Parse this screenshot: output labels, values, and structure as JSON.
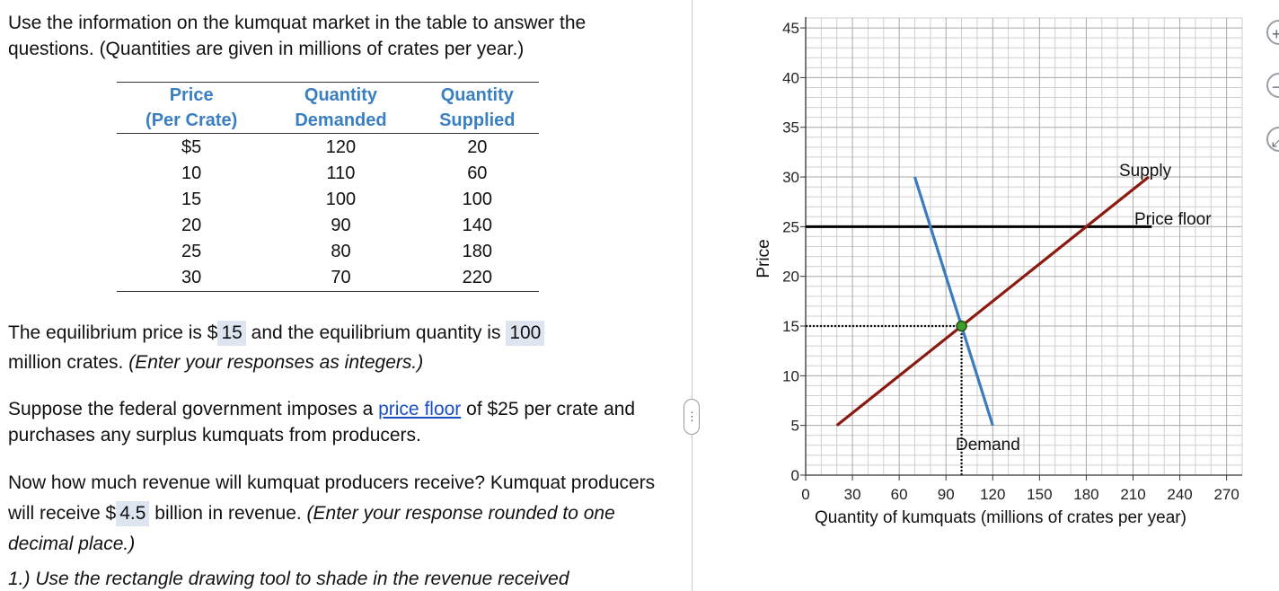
{
  "intro": "Use the information on the kumquat market in the table to answer the questions. (Quantities are given in millions of crates per year.)",
  "table": {
    "headers": [
      {
        "line1": "Price",
        "line2": "(Per Crate)"
      },
      {
        "line1": "Quantity",
        "line2": "Demanded"
      },
      {
        "line1": "Quantity",
        "line2": "Supplied"
      }
    ],
    "rows": [
      [
        "$5",
        "120",
        "20"
      ],
      [
        "10",
        "110",
        "60"
      ],
      [
        "15",
        "100",
        "100"
      ],
      [
        "20",
        "90",
        "140"
      ],
      [
        "25",
        "80",
        "180"
      ],
      [
        "30",
        "70",
        "220"
      ]
    ]
  },
  "q1": {
    "pre": "The equilibrium price is $",
    "price_answer": "15",
    "mid": "and the equilibrium quantity is",
    "qty_answer": "100",
    "post": "million crates.",
    "hint": "(Enter your responses as integers.)"
  },
  "q2": {
    "pre": "Suppose the federal government imposes a",
    "link": "price floor",
    "post": "of $25 per crate and purchases any surplus kumquats from producers."
  },
  "q3": {
    "pre": "Now how much revenue will kumquat producers receive? Kumquat producers will receive $",
    "answer": "4.5",
    "post": "billion in revenue.",
    "hint": "(Enter your response rounded to one decimal place.)"
  },
  "q4": {
    "text": "1.) Use the rectangle drawing tool to shade in the revenue received"
  },
  "handle_glyph": "⋮",
  "side_buttons": [
    {
      "icon": "zoom-in-icon",
      "glyph": "+"
    },
    {
      "icon": "zoom-out-icon",
      "glyph": "−"
    },
    {
      "icon": "expand-icon",
      "glyph": "⤢"
    }
  ],
  "chart_data": {
    "type": "line",
    "xlabel": "Quantity of kumquats (millions of crates per year)",
    "ylabel": "Price",
    "xlim": [
      0,
      280
    ],
    "ylim": [
      0,
      46
    ],
    "x_ticks": [
      0,
      30,
      60,
      90,
      120,
      150,
      180,
      210,
      240,
      270
    ],
    "y_ticks": [
      0,
      5,
      10,
      15,
      20,
      25,
      30,
      35,
      40,
      45
    ],
    "grid": true,
    "series": [
      {
        "name": "Supply",
        "color": "#8b1a10",
        "x": [
          20,
          220
        ],
        "y": [
          5,
          30
        ]
      },
      {
        "name": "Demand",
        "color": "#3b7bbf",
        "x": [
          70,
          120
        ],
        "y": [
          30,
          5
        ]
      }
    ],
    "price_floor": {
      "label": "Price floor",
      "y": 25,
      "x": [
        0,
        222
      ],
      "color": "#000000"
    },
    "equilibrium": {
      "x": 100,
      "y": 15,
      "color": "#3f9e2d"
    }
  }
}
